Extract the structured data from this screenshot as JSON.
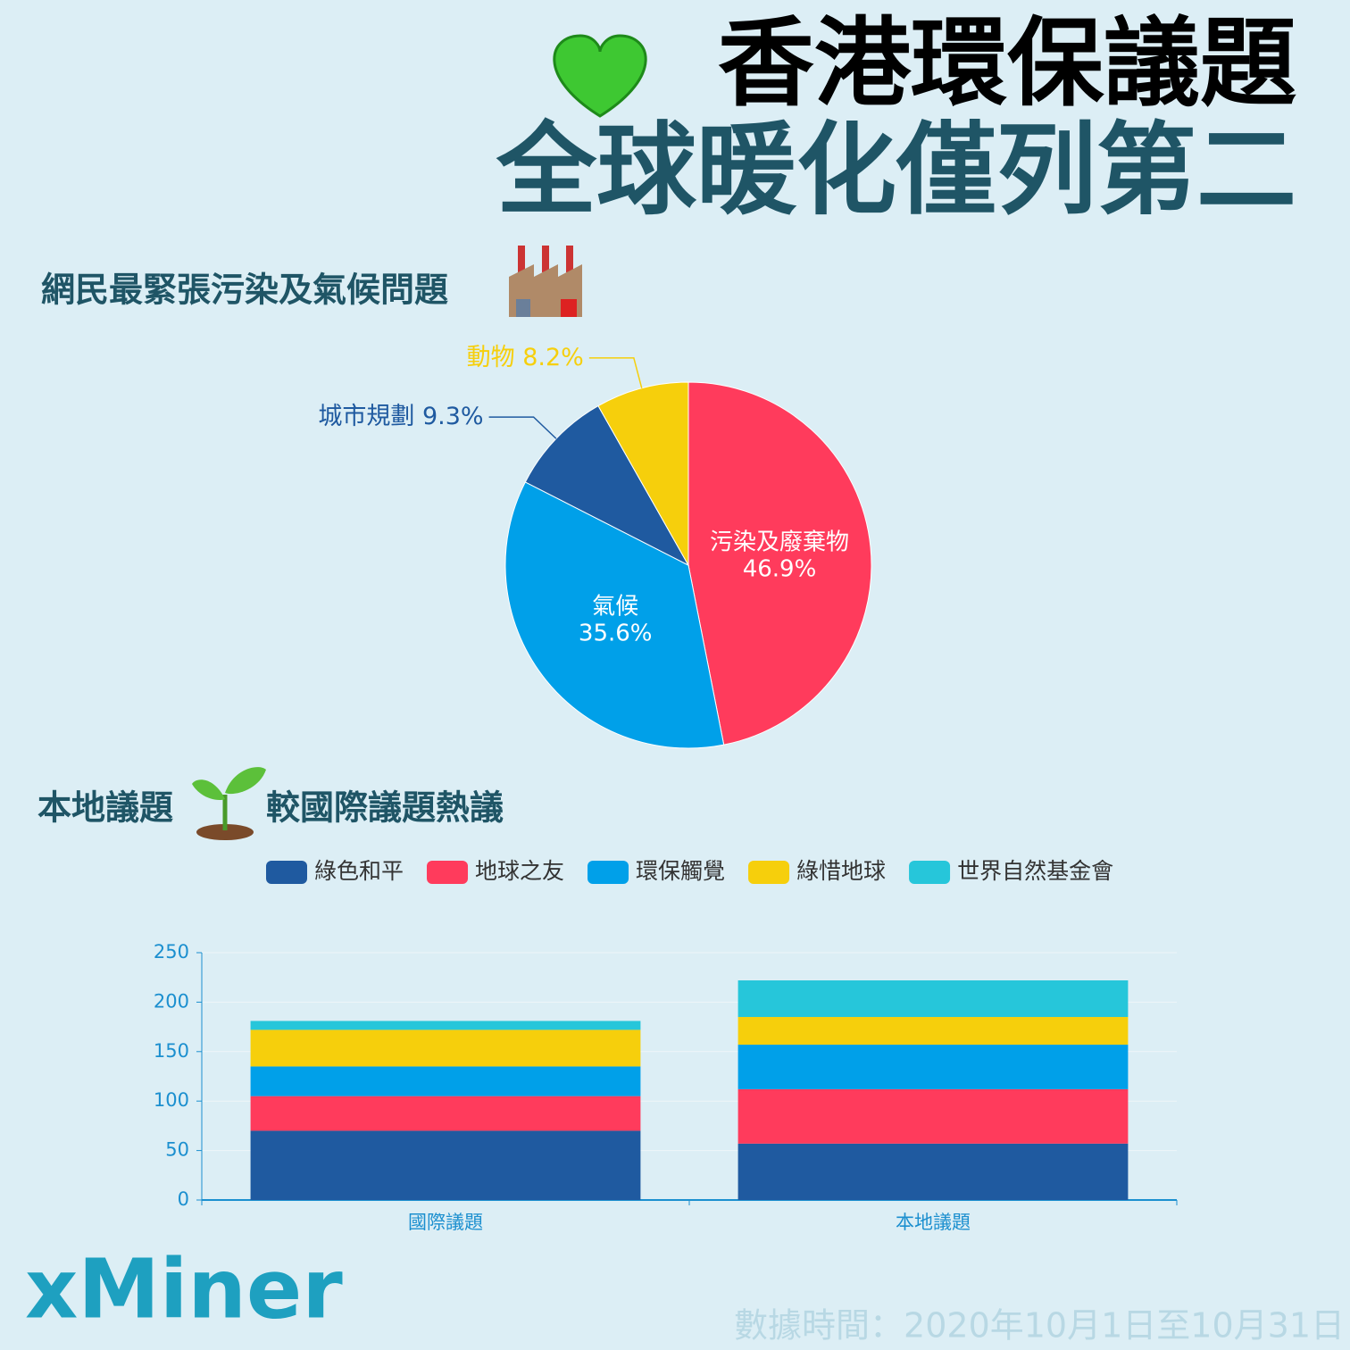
{
  "header": {
    "title": [
      "香港環保議題",
      "全球暖化僅列第二"
    ]
  },
  "chart_data": [
    {
      "type": "pie",
      "title": "網民最緊張污染及氣候問題",
      "categories": [
        "污染及廢棄物",
        "氣候",
        "城市規劃",
        "動物"
      ],
      "values": [
        46.9,
        35.6,
        9.3,
        8.2
      ],
      "value_labels": [
        "46.9%",
        "35.6%",
        "9.3%",
        "8.2%"
      ],
      "colors": [
        "#ff3b5c",
        "#00a0e9",
        "#1f5aa0",
        "#f6cf0c"
      ]
    },
    {
      "type": "bar",
      "stacked": true,
      "title": [
        "本地議題",
        "較國際議題熱議"
      ],
      "categories": [
        "國際議題",
        "本地議題"
      ],
      "series": [
        {
          "name": "綠色和平",
          "color": "#1f5aa0",
          "values": [
            70,
            57
          ]
        },
        {
          "name": "地球之友",
          "color": "#ff3b5c",
          "values": [
            35,
            55
          ]
        },
        {
          "name": "環保觸覺",
          "color": "#00a0e9",
          "values": [
            30,
            45
          ]
        },
        {
          "name": "綠惜地球",
          "color": "#f6cf0c",
          "values": [
            37,
            28
          ]
        },
        {
          "name": "世界自然基金會",
          "color": "#26c6da",
          "values": [
            9,
            37
          ]
        }
      ],
      "ylim": [
        0,
        250
      ],
      "yticks": [
        0,
        50,
        100,
        150,
        200,
        250
      ],
      "grid": true
    }
  ],
  "footer": {
    "brand": "xMiner",
    "note": "數據時間：2020年10月1日至10月31日"
  }
}
